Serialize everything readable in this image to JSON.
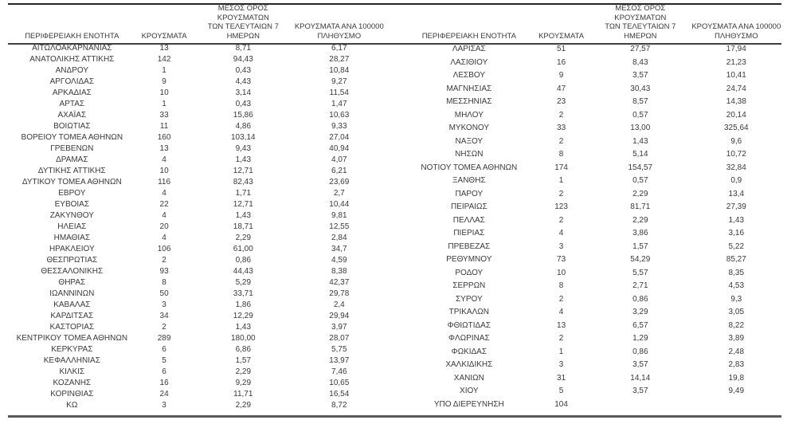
{
  "colors": {
    "background": "#ffffff",
    "text": "#3a3a3a",
    "rule_top": "#262626",
    "rule_header": "#404040",
    "rule_bottom": "#595959"
  },
  "tables": {
    "headers": {
      "region": "ΠΕΡΙΦΕΡΕΙΑΚΗ ΕΝΟΤΗΤΑ",
      "cases": "ΚΡΟΥΣΜΑΤΑ",
      "avg7": "ΜΕΣΟΣ ΟΡΟΣ ΚΡΟΥΣΜΑΤΩΝ\nΤΩΝ ΤΕΛΕΥΤΑΙΩΝ 7\nΗΜΕΡΩΝ",
      "per100k": "ΚΡΟΥΣΜΑΤΑ ΑΝΑ 100000\nΠΛΗΘΥΣΜΟ"
    },
    "left_rows": [
      [
        "ΑΙΤΩΛΟΑΚΑΡΝΑΝΙΑΣ",
        "13",
        "8,71",
        "6,17"
      ],
      [
        "ΑΝΑΤΟΛΙΚΗΣ ΑΤΤΙΚΗΣ",
        "142",
        "94,43",
        "28,27"
      ],
      [
        "ΑΝΔΡΟΥ",
        "1",
        "0,43",
        "10,84"
      ],
      [
        "ΑΡΓΟΛΙΔΑΣ",
        "9",
        "4,43",
        "9,27"
      ],
      [
        "ΑΡΚΑΔΙΑΣ",
        "10",
        "3,14",
        "11,54"
      ],
      [
        "ΑΡΤΑΣ",
        "1",
        "0,43",
        "1,47"
      ],
      [
        "ΑΧΑΪΑΣ",
        "33",
        "15,86",
        "10,63"
      ],
      [
        "ΒΟΙΩΤΙΑΣ",
        "11",
        "4,86",
        "9,33"
      ],
      [
        "ΒΟΡΕΙΟΥ ΤΟΜΕΑ ΑΘΗΝΩΝ",
        "160",
        "103,14",
        "27,04"
      ],
      [
        "ΓΡΕΒΕΝΩΝ",
        "13",
        "9,43",
        "40,94"
      ],
      [
        "ΔΡΑΜΑΣ",
        "4",
        "1,43",
        "4,07"
      ],
      [
        "ΔΥΤΙΚΗΣ ΑΤΤΙΚΗΣ",
        "10",
        "12,71",
        "6,21"
      ],
      [
        "ΔΥΤΙΚΟΥ ΤΟΜΕΑ ΑΘΗΝΩΝ",
        "116",
        "82,43",
        "23,69"
      ],
      [
        "ΕΒΡΟΥ",
        "4",
        "1,71",
        "2,7"
      ],
      [
        "ΕΥΒΟΙΑΣ",
        "22",
        "12,71",
        "10,44"
      ],
      [
        "ΖΑΚΥΝΘΟΥ",
        "4",
        "1,43",
        "9,81"
      ],
      [
        "ΗΛΕΙΑΣ",
        "20",
        "18,71",
        "12,55"
      ],
      [
        "ΗΜΑΘΙΑΣ",
        "4",
        "2,29",
        "2,84"
      ],
      [
        "ΗΡΑΚΛΕΙΟΥ",
        "106",
        "61,00",
        "34,7"
      ],
      [
        "ΘΕΣΠΡΩΤΙΑΣ",
        "2",
        "0,86",
        "4,59"
      ],
      [
        "ΘΕΣΣΑΛΟΝΙΚΗΣ",
        "93",
        "44,43",
        "8,38"
      ],
      [
        "ΘΗΡΑΣ",
        "8",
        "5,29",
        "42,37"
      ],
      [
        "ΙΩΑΝΝΙΝΩΝ",
        "50",
        "33,71",
        "29,78"
      ],
      [
        "ΚΑΒΑΛΑΣ",
        "3",
        "1,86",
        "2,4"
      ],
      [
        "ΚΑΡΔΙΤΣΑΣ",
        "34",
        "12,29",
        "29,94"
      ],
      [
        "ΚΑΣΤΟΡΙΑΣ",
        "2",
        "1,43",
        "3,97"
      ],
      [
        "ΚΕΝΤΡΙΚΟΥ ΤΟΜΕΑ ΑΘΗΝΩΝ",
        "289",
        "180,00",
        "28,07"
      ],
      [
        "ΚΕΡΚΥΡΑΣ",
        "6",
        "6,86",
        "5,75"
      ],
      [
        "ΚΕΦΑΛΛΗΝΙΑΣ",
        "5",
        "1,57",
        "13,97"
      ],
      [
        "ΚΙΛΚΙΣ",
        "6",
        "2,29",
        "7,46"
      ],
      [
        "ΚΟΖΑΝΗΣ",
        "16",
        "9,29",
        "10,65"
      ],
      [
        "ΚΟΡΙΝΘΙΑΣ",
        "24",
        "11,71",
        "16,54"
      ],
      [
        "ΚΩ",
        "3",
        "2,29",
        "8,72"
      ]
    ],
    "right_rows": [
      [
        "ΛΑΡΙΣΑΣ",
        "51",
        "27,57",
        "17,94"
      ],
      [
        "ΛΑΣΙΘΙΟΥ",
        "16",
        "8,43",
        "21,23"
      ],
      [
        "ΛΕΣΒΟΥ",
        "9",
        "3,57",
        "10,41"
      ],
      [
        "ΜΑΓΝΗΣΙΑΣ",
        "47",
        "30,43",
        "24,74"
      ],
      [
        "ΜΕΣΣΗΝΙΑΣ",
        "23",
        "8,57",
        "14,38"
      ],
      [
        "ΜΗΛΟΥ",
        "2",
        "0,57",
        "20,14"
      ],
      [
        "ΜΥΚΟΝΟΥ",
        "33",
        "13,00",
        "325,64"
      ],
      [
        "ΝΑΞΟΥ",
        "2",
        "1,43",
        "9,6"
      ],
      [
        "ΝΗΣΩΝ",
        "8",
        "5,14",
        "10,72"
      ],
      [
        "ΝΟΤΙΟΥ ΤΟΜΕΑ ΑΘΗΝΩΝ",
        "174",
        "154,57",
        "32,84"
      ],
      [
        "ΞΑΝΘΗΣ",
        "1",
        "0,57",
        "0,9"
      ],
      [
        "ΠΑΡΟΥ",
        "2",
        "2,29",
        "13,4"
      ],
      [
        "ΠΕΙΡΑΙΩΣ",
        "123",
        "81,71",
        "27,39"
      ],
      [
        "ΠΕΛΛΑΣ",
        "2",
        "2,29",
        "1,43"
      ],
      [
        "ΠΙΕΡΙΑΣ",
        "4",
        "3,86",
        "3,16"
      ],
      [
        "ΠΡΕΒΕΖΑΣ",
        "3",
        "1,57",
        "5,22"
      ],
      [
        "ΡΕΘΥΜΝΟΥ",
        "73",
        "54,29",
        "85,27"
      ],
      [
        "ΡΟΔΟΥ",
        "10",
        "5,57",
        "8,35"
      ],
      [
        "ΣΕΡΡΩΝ",
        "8",
        "2,71",
        "4,53"
      ],
      [
        "ΣΥΡΟΥ",
        "2",
        "0,86",
        "9,3"
      ],
      [
        "ΤΡΙΚΑΛΩΝ",
        "4",
        "3,29",
        "3,05"
      ],
      [
        "ΦΘΙΩΤΙΔΑΣ",
        "13",
        "6,57",
        "8,22"
      ],
      [
        "ΦΛΩΡΙΝΑΣ",
        "2",
        "1,29",
        "3,89"
      ],
      [
        "ΦΩΚΙΔΑΣ",
        "1",
        "0,86",
        "2,48"
      ],
      [
        "ΧΑΛΚΙΔΙΚΗΣ",
        "3",
        "3,57",
        "2,83"
      ],
      [
        "ΧΑΝΙΩΝ",
        "31",
        "14,14",
        "19,8"
      ],
      [
        "ΧΙΟΥ",
        "5",
        "3,57",
        "9,49"
      ],
      [
        "ΥΠΟ ΔΙΕΡΕΥΝΗΣΗ",
        "104",
        "",
        ""
      ]
    ]
  }
}
